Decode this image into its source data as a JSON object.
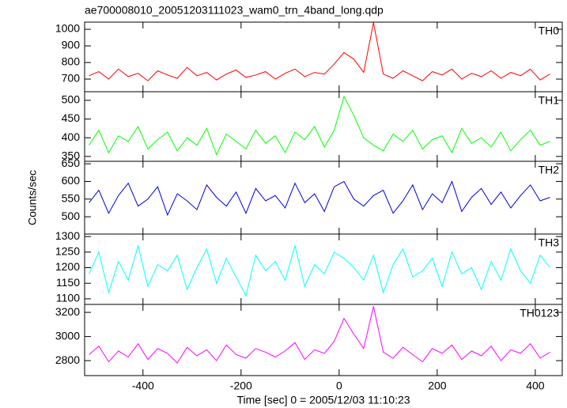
{
  "title": "ae700008010_20051203111023_wam0_trn_4band_long.qdp",
  "x_label": "Time [sec] 0 = 2005/12/03 11:10:23",
  "y_label": "Counts/sec",
  "chart_data": [
    {
      "type": "line",
      "x": [
        -510,
        -490,
        -470,
        -450,
        -430,
        -410,
        -390,
        -370,
        -350,
        -330,
        -310,
        -290,
        -270,
        -250,
        -230,
        -210,
        -190,
        -170,
        -150,
        -130,
        -110,
        -90,
        -70,
        -50,
        -30,
        -10,
        10,
        30,
        50,
        70,
        90,
        110,
        130,
        150,
        170,
        190,
        210,
        230,
        250,
        270,
        290,
        310,
        330,
        350,
        370,
        390,
        410,
        430
      ],
      "series": [
        {
          "name": "TH0",
          "color": "#ff0000",
          "values": [
            720,
            745,
            700,
            760,
            715,
            735,
            690,
            750,
            725,
            705,
            770,
            720,
            740,
            695,
            730,
            755,
            710,
            725,
            745,
            700,
            735,
            760,
            715,
            740,
            730,
            790,
            860,
            820,
            740,
            1040,
            730,
            705,
            750,
            720,
            690,
            745,
            725,
            760,
            700,
            735,
            715,
            750,
            705,
            740,
            720,
            760,
            695,
            730
          ]
        }
      ],
      "xlim": [
        -519,
        455
      ],
      "xticks": [
        -400,
        -200,
        0,
        200,
        400
      ],
      "ylim": [
        624,
        1043
      ],
      "yticks": [
        700,
        800,
        900,
        1000
      ]
    },
    {
      "type": "line",
      "x": [
        -510,
        -490,
        -470,
        -450,
        -430,
        -410,
        -390,
        -370,
        -350,
        -330,
        -310,
        -290,
        -270,
        -250,
        -230,
        -210,
        -190,
        -170,
        -150,
        -130,
        -110,
        -90,
        -70,
        -50,
        -30,
        -10,
        10,
        30,
        50,
        70,
        90,
        110,
        130,
        150,
        170,
        190,
        210,
        230,
        250,
        270,
        290,
        310,
        330,
        350,
        370,
        390,
        410,
        430
      ],
      "series": [
        {
          "name": "TH1",
          "color": "#00ff00",
          "values": [
            380,
            420,
            360,
            405,
            390,
            430,
            370,
            395,
            415,
            365,
            400,
            380,
            425,
            355,
            410,
            390,
            370,
            420,
            385,
            405,
            360,
            415,
            395,
            430,
            375,
            420,
            510,
            460,
            400,
            380,
            365,
            410,
            390,
            420,
            370,
            395,
            405,
            360,
            425,
            385,
            400,
            375,
            415,
            365,
            395,
            420,
            380,
            390
          ]
        }
      ],
      "xlim": [
        -519,
        455
      ],
      "xticks": [
        -400,
        -200,
        0,
        200,
        400
      ],
      "ylim": [
        337,
        523
      ],
      "yticks": [
        350,
        400,
        450,
        500
      ]
    },
    {
      "type": "line",
      "x": [
        -510,
        -490,
        -470,
        -450,
        -430,
        -410,
        -390,
        -370,
        -350,
        -330,
        -310,
        -290,
        -270,
        -250,
        -230,
        -210,
        -190,
        -170,
        -150,
        -130,
        -110,
        -90,
        -70,
        -50,
        -30,
        -10,
        10,
        30,
        50,
        70,
        90,
        110,
        130,
        150,
        170,
        190,
        210,
        230,
        250,
        270,
        290,
        310,
        330,
        350,
        370,
        390,
        410,
        430
      ],
      "series": [
        {
          "name": "TH2",
          "color": "#0000e0",
          "values": [
            540,
            575,
            510,
            560,
            595,
            530,
            550,
            585,
            505,
            565,
            545,
            520,
            590,
            555,
            530,
            570,
            510,
            580,
            545,
            560,
            525,
            595,
            540,
            565,
            515,
            585,
            600,
            550,
            530,
            560,
            575,
            510,
            545,
            590,
            520,
            565,
            540,
            600,
            515,
            555,
            580,
            535,
            570,
            525,
            560,
            590,
            545,
            555
          ]
        }
      ],
      "xlim": [
        -519,
        455
      ],
      "xticks": [
        -400,
        -200,
        0,
        200,
        400
      ],
      "ylim": [
        451,
        657
      ],
      "yticks": [
        500,
        550,
        600,
        650
      ]
    },
    {
      "type": "line",
      "x": [
        -510,
        -490,
        -470,
        -450,
        -430,
        -410,
        -390,
        -370,
        -350,
        -330,
        -310,
        -290,
        -270,
        -250,
        -230,
        -210,
        -190,
        -170,
        -150,
        -130,
        -110,
        -90,
        -70,
        -50,
        -30,
        -10,
        10,
        30,
        50,
        70,
        90,
        110,
        130,
        150,
        170,
        190,
        210,
        230,
        250,
        270,
        290,
        310,
        330,
        350,
        370,
        390,
        410,
        430
      ],
      "series": [
        {
          "name": "TH3",
          "color": "#00ffff",
          "values": [
            1180,
            1250,
            1120,
            1220,
            1160,
            1270,
            1140,
            1210,
            1190,
            1240,
            1130,
            1200,
            1260,
            1150,
            1230,
            1170,
            1110,
            1240,
            1190,
            1220,
            1160,
            1270,
            1140,
            1210,
            1180,
            1250,
            1230,
            1200,
            1160,
            1240,
            1120,
            1210,
            1260,
            1170,
            1190,
            1230,
            1140,
            1250,
            1180,
            1200,
            1130,
            1220,
            1160,
            1260,
            1190,
            1150,
            1240,
            1200
          ]
        }
      ],
      "xlim": [
        -519,
        455
      ],
      "xticks": [
        -400,
        -200,
        0,
        200,
        400
      ],
      "ylim": [
        1082,
        1308
      ],
      "yticks": [
        1100,
        1150,
        1200,
        1250,
        1300
      ]
    },
    {
      "type": "line",
      "x": [
        -510,
        -490,
        -470,
        -450,
        -430,
        -410,
        -390,
        -370,
        -350,
        -330,
        -310,
        -290,
        -270,
        -250,
        -230,
        -210,
        -190,
        -170,
        -150,
        -130,
        -110,
        -90,
        -70,
        -50,
        -30,
        -10,
        10,
        30,
        50,
        70,
        90,
        110,
        130,
        150,
        170,
        190,
        210,
        230,
        250,
        270,
        290,
        310,
        330,
        350,
        370,
        390,
        410,
        430
      ],
      "series": [
        {
          "name": "TH0123",
          "color": "#ff00ff",
          "values": [
            2850,
            2920,
            2790,
            2880,
            2830,
            2940,
            2810,
            2900,
            2860,
            2780,
            2910,
            2840,
            2890,
            2800,
            2930,
            2850,
            2820,
            2900,
            2870,
            2830,
            2880,
            2950,
            2810,
            2890,
            2860,
            2960,
            3150,
            3020,
            2900,
            3250,
            2870,
            2820,
            2910,
            2850,
            2790,
            2900,
            2860,
            2930,
            2810,
            2880,
            2840,
            2920,
            2800,
            2890,
            2860,
            2940,
            2820,
            2870
          ]
        }
      ],
      "xlim": [
        -519,
        455
      ],
      "xticks": [
        -400,
        -200,
        0,
        200,
        400
      ],
      "ylim": [
        2676,
        3266
      ],
      "yticks": [
        2800,
        3000,
        3200
      ]
    }
  ]
}
